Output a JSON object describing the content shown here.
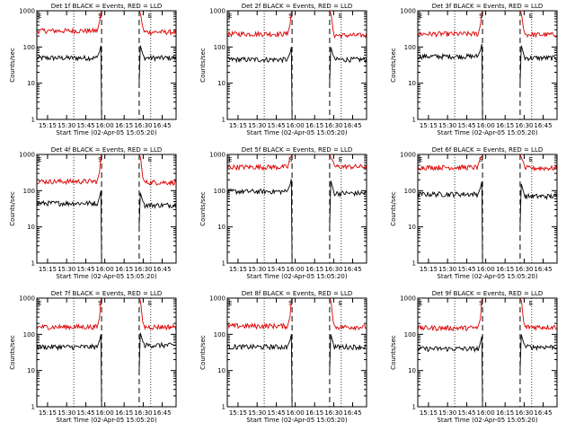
{
  "chart_data": [
    {
      "type": "line",
      "title": "Det 1f BLACK = Events, RED = LLD",
      "xlabel": "Start Time (02-Apr-05 15:05:20)",
      "ylabel": "Counts/sec",
      "x_ticks": [
        "15:15",
        "15:30",
        "15:45",
        "16:00",
        "16:15",
        "16:30",
        "16:45"
      ],
      "y_ticks": [
        "1",
        "10",
        "100",
        "1000"
      ],
      "y_scale": "log",
      "ylim": [
        1,
        1000
      ],
      "markers": {
        "E_left": "E",
        "S": "S",
        "E_right": "E"
      },
      "series": [
        {
          "color": "#000000",
          "level_before": 50,
          "level_after": 50
        },
        {
          "color": "#dd0000",
          "level_before": 280,
          "level_after": 260
        }
      ]
    },
    {
      "type": "line",
      "title": "Det 2f BLACK = Events, RED = LLD",
      "xlabel": "Start Time (02-Apr-05 15:05:20)",
      "ylabel": "Counts/sec",
      "x_ticks": [
        "15:15",
        "15:30",
        "15:45",
        "16:00",
        "16:15",
        "16:30",
        "16:45"
      ],
      "y_ticks": [
        "1",
        "10",
        "100",
        "1000"
      ],
      "y_scale": "log",
      "ylim": [
        1,
        1000
      ],
      "markers": {
        "E_left": "E",
        "S": "S",
        "E_right": "E"
      },
      "series": [
        {
          "color": "#000000",
          "level_before": 45,
          "level_after": 45
        },
        {
          "color": "#dd0000",
          "level_before": 230,
          "level_after": 210
        }
      ]
    },
    {
      "type": "line",
      "title": "Det 3f BLACK = Events, RED = LLD",
      "xlabel": "Start Time (02-Apr-05 15:05:20)",
      "ylabel": "Counts/sec",
      "x_ticks": [
        "15:15",
        "15:30",
        "15:45",
        "16:00",
        "16:15",
        "16:30",
        "16:45"
      ],
      "y_ticks": [
        "1",
        "10",
        "100",
        "1000"
      ],
      "y_scale": "log",
      "ylim": [
        1,
        1000
      ],
      "markers": {
        "E_left": "E",
        "S": "S",
        "E_right": "E"
      },
      "series": [
        {
          "color": "#000000",
          "level_before": 55,
          "level_after": 50
        },
        {
          "color": "#dd0000",
          "level_before": 230,
          "level_after": 220
        }
      ]
    },
    {
      "type": "line",
      "title": "Det 4f BLACK = Events, RED = LLD",
      "xlabel": "Start Time (02-Apr-05 15:05:20)",
      "ylabel": "Counts/sec",
      "x_ticks": [
        "15:15",
        "15:30",
        "15:45",
        "16:00",
        "16:15",
        "16:30",
        "16:45"
      ],
      "y_ticks": [
        "1",
        "10",
        "100",
        "1000"
      ],
      "y_scale": "log",
      "ylim": [
        1,
        1000
      ],
      "markers": {
        "E_left": "E",
        "S": "S",
        "E_right": "E"
      },
      "series": [
        {
          "color": "#000000",
          "level_before": 45,
          "level_after": 40
        },
        {
          "color": "#dd0000",
          "level_before": 180,
          "level_after": 170
        }
      ]
    },
    {
      "type": "line",
      "title": "Det 5f BLACK = Events, RED = LLD",
      "xlabel": "Start Time (02-Apr-05 15:05:20)",
      "ylabel": "Counts/sec",
      "x_ticks": [
        "15:15",
        "15:30",
        "15:45",
        "16:00",
        "16:15",
        "16:30",
        "16:45"
      ],
      "y_ticks": [
        "1",
        "10",
        "100",
        "1000"
      ],
      "y_scale": "log",
      "ylim": [
        1,
        1000
      ],
      "markers": {
        "E_left": "E",
        "S": "S",
        "E_right": "E"
      },
      "series": [
        {
          "color": "#000000",
          "level_before": 95,
          "level_after": 85
        },
        {
          "color": "#dd0000",
          "level_before": 450,
          "level_after": 460
        }
      ]
    },
    {
      "type": "line",
      "title": "Det 6f BLACK = Events, RED = LLD",
      "xlabel": "Start Time (02-Apr-05 15:05:20)",
      "ylabel": "Counts/sec",
      "x_ticks": [
        "15:15",
        "15:30",
        "15:45",
        "16:00",
        "16:15",
        "16:30",
        "16:45"
      ],
      "y_ticks": [
        "1",
        "10",
        "100",
        "1000"
      ],
      "y_scale": "log",
      "ylim": [
        1,
        1000
      ],
      "markers": {
        "E_left": "E",
        "S": "S",
        "E_right": "E"
      },
      "series": [
        {
          "color": "#000000",
          "level_before": 80,
          "level_after": 70
        },
        {
          "color": "#dd0000",
          "level_before": 440,
          "level_after": 420
        }
      ]
    },
    {
      "type": "line",
      "title": "Det 7f BLACK = Events, RED = LLD",
      "xlabel": "Start Time (02-Apr-05 15:05:20)",
      "ylabel": "Counts/sec",
      "x_ticks": [
        "15:15",
        "15:30",
        "15:45",
        "16:00",
        "16:15",
        "16:30",
        "16:45"
      ],
      "y_ticks": [
        "1",
        "10",
        "100",
        "1000"
      ],
      "y_scale": "log",
      "ylim": [
        1,
        1000
      ],
      "markers": {
        "E_left": "E",
        "S": "S",
        "E_right": "E"
      },
      "series": [
        {
          "color": "#000000",
          "level_before": 45,
          "level_after": 50
        },
        {
          "color": "#dd0000",
          "level_before": 160,
          "level_after": 160
        }
      ]
    },
    {
      "type": "line",
      "title": "Det 8f BLACK = Events, RED = LLD",
      "xlabel": "Start Time (02-Apr-05 15:05:20)",
      "ylabel": "Counts/sec",
      "x_ticks": [
        "15:15",
        "15:30",
        "15:45",
        "16:00",
        "16:15",
        "16:30",
        "16:45"
      ],
      "y_ticks": [
        "1",
        "10",
        "100",
        "1000"
      ],
      "y_scale": "log",
      "ylim": [
        1,
        1000
      ],
      "markers": {
        "E_left": "E",
        "S": "S",
        "E_right": "E"
      },
      "series": [
        {
          "color": "#000000",
          "level_before": 45,
          "level_after": 45
        },
        {
          "color": "#dd0000",
          "level_before": 170,
          "level_after": 160
        }
      ]
    },
    {
      "type": "line",
      "title": "Det 9f BLACK = Events, RED = LLD",
      "xlabel": "Start Time (02-Apr-05 15:05:20)",
      "ylabel": "Counts/sec",
      "x_ticks": [
        "15:15",
        "15:30",
        "15:45",
        "16:00",
        "16:15",
        "16:30",
        "16:45"
      ],
      "y_ticks": [
        "1",
        "10",
        "100",
        "1000"
      ],
      "y_scale": "log",
      "ylim": [
        1,
        1000
      ],
      "markers": {
        "E_left": "E",
        "S": "S",
        "E_right": "E"
      },
      "series": [
        {
          "color": "#000000",
          "level_before": 40,
          "level_after": 45
        },
        {
          "color": "#dd0000",
          "level_before": 150,
          "level_after": 160
        }
      ]
    }
  ]
}
